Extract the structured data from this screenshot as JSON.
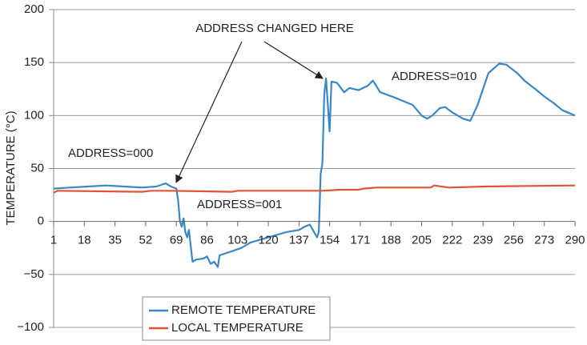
{
  "chart_data": {
    "type": "line",
    "ylabel": "TEMPERATURE (°C)",
    "annotations": [
      "ADDRESS CHANGED HERE",
      "ADDRESS=000",
      "ADDRESS=001",
      "ADDRESS=010"
    ],
    "xlim": [
      1,
      290
    ],
    "xticks": [
      1,
      18,
      35,
      52,
      69,
      86,
      103,
      120,
      137,
      154,
      171,
      188,
      205,
      222,
      239,
      256,
      273,
      290
    ],
    "ylim": [
      -100,
      200
    ],
    "yticks": [
      {
        "value": -100,
        "label": "−100"
      },
      {
        "value": -50,
        "label": "−50"
      },
      0,
      50,
      100,
      150,
      200
    ],
    "grid": true,
    "legend": "bottom",
    "series": [
      {
        "name": "REMOTE TEMPERATURE",
        "color": "#3a87c4",
        "x": [
          1,
          10,
          20,
          30,
          40,
          50,
          58,
          63,
          66,
          69,
          70,
          71,
          72,
          73,
          74,
          75,
          76,
          78,
          80,
          84,
          86,
          88,
          90,
          92,
          93,
          100,
          105,
          110,
          120,
          130,
          137,
          140,
          143,
          147,
          148,
          149,
          150,
          151,
          152,
          153,
          154,
          155,
          158,
          162,
          165,
          170,
          175,
          178,
          182,
          190,
          200,
          205,
          208,
          211,
          215,
          218,
          222,
          228,
          232,
          236,
          242,
          248,
          252,
          258,
          262,
          268,
          273,
          278,
          283,
          290
        ],
        "values": [
          31,
          32,
          33,
          34,
          33,
          32,
          33,
          36,
          33,
          31,
          20,
          0,
          -5,
          3,
          -10,
          -15,
          -8,
          -38,
          -36,
          -35,
          -33,
          -40,
          -38,
          -43,
          -32,
          -28,
          -25,
          -20,
          -15,
          -10,
          -8,
          -5,
          -3,
          -15,
          -10,
          45,
          55,
          120,
          135,
          110,
          85,
          132,
          131,
          122,
          126,
          124,
          128,
          133,
          122,
          117,
          110,
          100,
          97,
          100,
          107,
          108,
          103,
          97,
          95,
          110,
          140,
          149,
          148,
          140,
          133,
          125,
          118,
          112,
          105,
          100
        ]
      },
      {
        "name": "LOCAL TEMPERATURE",
        "color": "#e0533a",
        "x": [
          1,
          3,
          50,
          55,
          65,
          100,
          103,
          110,
          150,
          160,
          170,
          173,
          180,
          210,
          212,
          220,
          240,
          290
        ],
        "values": [
          27,
          29,
          28,
          29,
          29,
          28,
          29,
          29,
          29,
          30,
          30,
          31,
          32,
          32,
          34,
          32,
          33,
          34
        ]
      }
    ]
  }
}
